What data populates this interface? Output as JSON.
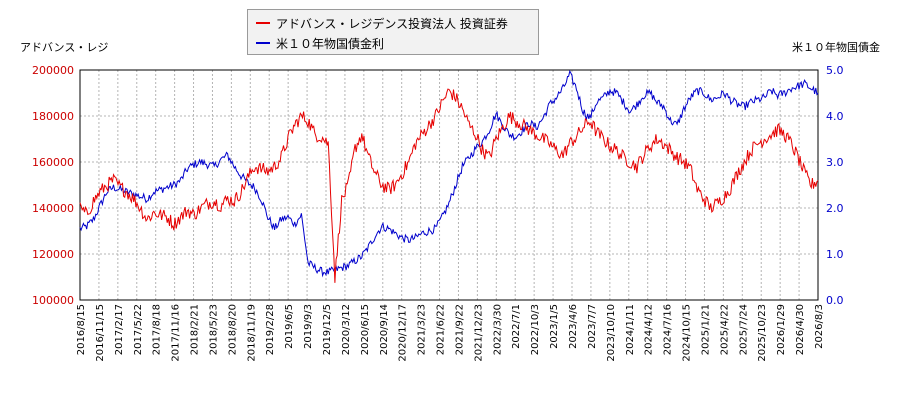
{
  "colors": {
    "stock": "#e60000",
    "bond": "#0000cc",
    "axis_left_labels": "#cc0000",
    "axis_right_labels": "#0000cc",
    "grid": "#b4b4b4"
  },
  "legend": {
    "stock_label": "アドバンス・レジデンス投資法人 投資証券",
    "bond_label": "米１０年物国債金利"
  },
  "axis_titles": {
    "left": "アドバンス・レジ",
    "right": "米１０年物国債金"
  },
  "chart_data": {
    "type": "line",
    "x_ticks": [
      "2016/8/15",
      "2016/11/15",
      "2017/2/17",
      "2017/5/22",
      "2017/8/18",
      "2017/11/16",
      "2018/2/21",
      "2018/5/23",
      "2018/8/20",
      "2018/11/19",
      "2019/2/28",
      "2019/6/5",
      "2019/9/3",
      "2019/12/5",
      "2020/3/12",
      "2020/6/15",
      "2020/9/14",
      "2020/12/17",
      "2021/3/23",
      "2021/6/22",
      "2021/9/22",
      "2021/12/23",
      "2022/3/30",
      "2022/7/1",
      "2022/10/3",
      "2023/1/5",
      "2023/4/6",
      "2023/7/7",
      "2023/10/10",
      "2024/1/11",
      "2024/4/12",
      "2024/7/16",
      "2024/10/15",
      "2025/1/21",
      "2025/4/22",
      "2025/7/24",
      "2025/10/23",
      "2026/1/29",
      "2026/4/30",
      "2026/8/3"
    ],
    "y_left": {
      "label": "アドバンス・レジ",
      "min": 100000,
      "max": 200000,
      "ticks": [
        "100000",
        "120000",
        "140000",
        "160000",
        "180000",
        "200000"
      ]
    },
    "y_right": {
      "label": "米１０年物国債金",
      "min": 0,
      "max": 5,
      "ticks": [
        "0.0",
        "1.0",
        "2.0",
        "3.0",
        "4.0",
        "5.0"
      ]
    },
    "grid": true,
    "legend_position": "top-center",
    "series": [
      {
        "name": "アドバンス・レジデンス投資法人 投資証券",
        "axis": "left",
        "values": [
          140000,
          137000,
          143000,
          147000,
          150000,
          152000,
          149000,
          147000,
          144000,
          140000,
          135000,
          138000,
          137000,
          136000,
          133000,
          136000,
          139000,
          137000,
          140000,
          142000,
          143000,
          141000,
          144000,
          143000,
          147000,
          153000,
          158000,
          157000,
          156000,
          158000,
          162000,
          170000,
          176000,
          180000,
          178000,
          172000,
          171000,
          168000,
          110000,
          143000,
          150000,
          166000,
          172000,
          162000,
          155000,
          150000,
          148000,
          150000,
          155000,
          160000,
          168000,
          172000,
          176000,
          180000,
          186000,
          191000,
          188000,
          183000,
          176000,
          172000,
          165000,
          162000,
          170000,
          175000,
          180000,
          178000,
          176000,
          174000,
          172000,
          170000,
          168000,
          165000,
          163000,
          168000,
          171000,
          175000,
          178000,
          173000,
          170000,
          167000,
          165000,
          162000,
          160000,
          158000,
          163000,
          167000,
          170000,
          168000,
          165000,
          162000,
          160000,
          157000,
          148000,
          144000,
          140000,
          142000,
          145000,
          149000,
          155000,
          160000,
          165000,
          168000,
          170000,
          172000,
          174000,
          172000,
          168000,
          162000,
          155000,
          150000,
          152000
        ]
      },
      {
        "name": "米１０年物国債金利",
        "axis": "right",
        "values": [
          1.55,
          1.6,
          1.75,
          2.05,
          2.35,
          2.45,
          2.4,
          2.35,
          2.3,
          2.25,
          2.2,
          2.35,
          2.4,
          2.45,
          2.5,
          2.6,
          2.85,
          2.95,
          3.0,
          2.95,
          2.9,
          3.05,
          3.15,
          2.9,
          2.7,
          2.55,
          2.45,
          2.2,
          1.8,
          1.55,
          1.75,
          1.8,
          1.65,
          1.85,
          0.8,
          0.7,
          0.62,
          0.6,
          0.65,
          0.7,
          0.75,
          0.85,
          0.95,
          1.15,
          1.4,
          1.6,
          1.55,
          1.45,
          1.35,
          1.3,
          1.35,
          1.45,
          1.5,
          1.55,
          1.8,
          2.1,
          2.5,
          2.9,
          3.1,
          3.3,
          3.45,
          3.7,
          4.05,
          3.8,
          3.6,
          3.55,
          3.7,
          3.85,
          3.75,
          3.95,
          4.25,
          4.4,
          4.6,
          4.9,
          4.6,
          4.1,
          3.95,
          4.3,
          4.4,
          4.55,
          4.5,
          4.3,
          4.1,
          4.25,
          4.45,
          4.5,
          4.3,
          4.2,
          3.9,
          3.8,
          4.15,
          4.4,
          4.55,
          4.5,
          4.35,
          4.4,
          4.5,
          4.35,
          4.25,
          4.2,
          4.3,
          4.35,
          4.4,
          4.55,
          4.45,
          4.5,
          4.6,
          4.65,
          4.7,
          4.6,
          4.5
        ]
      }
    ]
  }
}
